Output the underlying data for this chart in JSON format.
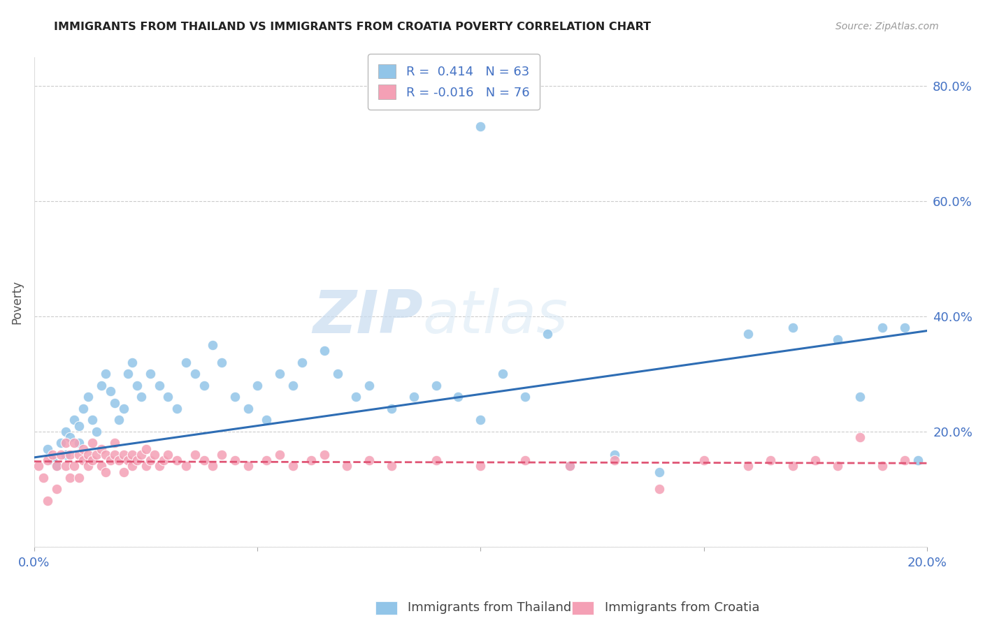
{
  "title": "IMMIGRANTS FROM THAILAND VS IMMIGRANTS FROM CROATIA POVERTY CORRELATION CHART",
  "source": "Source: ZipAtlas.com",
  "ylabel": "Poverty",
  "x_min": 0.0,
  "x_max": 0.2,
  "y_min": 0.0,
  "y_max": 0.85,
  "x_ticks": [
    0.0,
    0.05,
    0.1,
    0.15,
    0.2
  ],
  "x_tick_labels": [
    "0.0%",
    "",
    "",
    "",
    "20.0%"
  ],
  "y_ticks": [
    0.0,
    0.2,
    0.4,
    0.6,
    0.8
  ],
  "y_tick_labels": [
    "",
    "20.0%",
    "40.0%",
    "60.0%",
    "80.0%"
  ],
  "thailand_color": "#92C5E8",
  "croatia_color": "#F4A0B5",
  "thailand_line_color": "#2E6DB4",
  "croatia_line_color": "#E05575",
  "thailand_R": 0.414,
  "thailand_N": 63,
  "croatia_R": -0.016,
  "croatia_N": 76,
  "watermark_zip": "ZIP",
  "watermark_atlas": "atlas",
  "legend_label_thailand": "Immigrants from Thailand",
  "legend_label_croatia": "Immigrants from Croatia",
  "thailand_scatter_x": [
    0.003,
    0.004,
    0.005,
    0.006,
    0.007,
    0.007,
    0.008,
    0.009,
    0.01,
    0.01,
    0.011,
    0.012,
    0.013,
    0.014,
    0.015,
    0.016,
    0.017,
    0.018,
    0.019,
    0.02,
    0.021,
    0.022,
    0.023,
    0.024,
    0.026,
    0.028,
    0.03,
    0.032,
    0.034,
    0.036,
    0.038,
    0.04,
    0.042,
    0.045,
    0.048,
    0.05,
    0.052,
    0.055,
    0.058,
    0.06,
    0.065,
    0.068,
    0.072,
    0.075,
    0.08,
    0.085,
    0.09,
    0.095,
    0.1,
    0.105,
    0.11,
    0.12,
    0.13,
    0.14,
    0.1,
    0.16,
    0.17,
    0.18,
    0.185,
    0.19,
    0.195,
    0.198,
    0.115
  ],
  "thailand_scatter_y": [
    0.17,
    0.15,
    0.14,
    0.18,
    0.16,
    0.2,
    0.19,
    0.22,
    0.21,
    0.18,
    0.24,
    0.26,
    0.22,
    0.2,
    0.28,
    0.3,
    0.27,
    0.25,
    0.22,
    0.24,
    0.3,
    0.32,
    0.28,
    0.26,
    0.3,
    0.28,
    0.26,
    0.24,
    0.32,
    0.3,
    0.28,
    0.35,
    0.32,
    0.26,
    0.24,
    0.28,
    0.22,
    0.3,
    0.28,
    0.32,
    0.34,
    0.3,
    0.26,
    0.28,
    0.24,
    0.26,
    0.28,
    0.26,
    0.22,
    0.3,
    0.26,
    0.14,
    0.16,
    0.13,
    0.73,
    0.37,
    0.38,
    0.36,
    0.26,
    0.38,
    0.38,
    0.15,
    0.37
  ],
  "croatia_scatter_x": [
    0.001,
    0.002,
    0.003,
    0.003,
    0.004,
    0.005,
    0.005,
    0.006,
    0.007,
    0.007,
    0.008,
    0.008,
    0.009,
    0.009,
    0.01,
    0.01,
    0.011,
    0.011,
    0.012,
    0.012,
    0.013,
    0.013,
    0.014,
    0.015,
    0.015,
    0.016,
    0.016,
    0.017,
    0.018,
    0.018,
    0.019,
    0.02,
    0.02,
    0.021,
    0.022,
    0.022,
    0.023,
    0.024,
    0.025,
    0.025,
    0.026,
    0.027,
    0.028,
    0.029,
    0.03,
    0.032,
    0.034,
    0.036,
    0.038,
    0.04,
    0.042,
    0.045,
    0.048,
    0.052,
    0.055,
    0.058,
    0.062,
    0.065,
    0.07,
    0.075,
    0.08,
    0.09,
    0.1,
    0.11,
    0.12,
    0.13,
    0.14,
    0.15,
    0.16,
    0.165,
    0.17,
    0.175,
    0.18,
    0.185,
    0.19,
    0.195
  ],
  "croatia_scatter_y": [
    0.14,
    0.12,
    0.15,
    0.08,
    0.16,
    0.14,
    0.1,
    0.16,
    0.14,
    0.18,
    0.16,
    0.12,
    0.14,
    0.18,
    0.16,
    0.12,
    0.15,
    0.17,
    0.16,
    0.14,
    0.18,
    0.15,
    0.16,
    0.14,
    0.17,
    0.16,
    0.13,
    0.15,
    0.16,
    0.18,
    0.15,
    0.16,
    0.13,
    0.15,
    0.16,
    0.14,
    0.15,
    0.16,
    0.14,
    0.17,
    0.15,
    0.16,
    0.14,
    0.15,
    0.16,
    0.15,
    0.14,
    0.16,
    0.15,
    0.14,
    0.16,
    0.15,
    0.14,
    0.15,
    0.16,
    0.14,
    0.15,
    0.16,
    0.14,
    0.15,
    0.14,
    0.15,
    0.14,
    0.15,
    0.14,
    0.15,
    0.1,
    0.15,
    0.14,
    0.15,
    0.14,
    0.15,
    0.14,
    0.19,
    0.14,
    0.15
  ],
  "thailand_line_x0": 0.0,
  "thailand_line_y0": 0.155,
  "thailand_line_x1": 0.2,
  "thailand_line_y1": 0.375,
  "croatia_line_x0": 0.0,
  "croatia_line_y0": 0.148,
  "croatia_line_x1": 0.2,
  "croatia_line_y1": 0.145
}
